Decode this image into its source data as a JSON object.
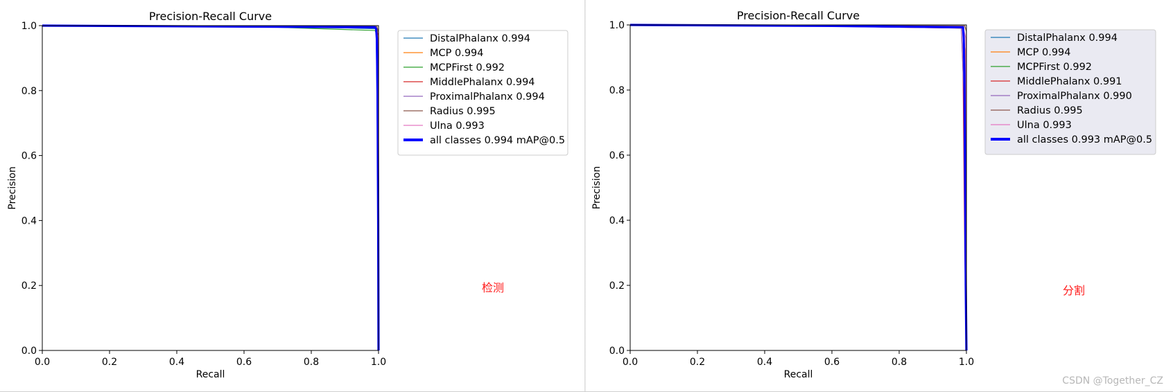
{
  "chart_data": [
    {
      "type": "line",
      "title": "Precision-Recall Curve",
      "xlabel": "Recall",
      "ylabel": "Precision",
      "xlim": [
        0,
        1
      ],
      "ylim": [
        0,
        1
      ],
      "xticks": [
        "0.0",
        "0.2",
        "0.4",
        "0.6",
        "0.8",
        "1.0"
      ],
      "yticks": [
        "0.0",
        "0.2",
        "0.4",
        "0.6",
        "0.8",
        "1.0"
      ],
      "grid": false,
      "legend_position": "top-right outside",
      "legend_background": "#ffffff",
      "annotation": "检测",
      "series": [
        {
          "name": "DistalPhalanx 0.994",
          "color": "#1f77b4",
          "x": [
            0,
            0.5,
            0.9,
            0.993,
            0.997,
            1.0
          ],
          "y": [
            1.0,
            0.997,
            0.993,
            0.99,
            0.6,
            0
          ]
        },
        {
          "name": "MCP 0.994",
          "color": "#ff7f0e",
          "x": [
            0,
            0.5,
            0.99,
            0.997,
            0.999,
            1.0
          ],
          "y": [
            1.0,
            0.998,
            0.995,
            0.99,
            0.5,
            0
          ]
        },
        {
          "name": "MCPFirst 0.992",
          "color": "#2ca02c",
          "x": [
            0,
            0.7,
            0.99,
            0.995,
            0.997,
            1.0
          ],
          "y": [
            1.0,
            0.995,
            0.985,
            0.97,
            0.55,
            0
          ]
        },
        {
          "name": "MiddlePhalanx 0.994",
          "color": "#d62728",
          "x": [
            0,
            0.5,
            0.99,
            1.0,
            1.0
          ],
          "y": [
            1.0,
            0.998,
            0.996,
            0.97,
            0
          ]
        },
        {
          "name": "ProximalPhalanx 0.994",
          "color": "#9467bd",
          "x": [
            0,
            0.5,
            0.99,
            0.998,
            1.0
          ],
          "y": [
            1.0,
            0.998,
            0.996,
            0.95,
            0
          ]
        },
        {
          "name": "Radius 0.995",
          "color": "#8c564b",
          "x": [
            0,
            0.5,
            0.995,
            1.0,
            1.0
          ],
          "y": [
            1.0,
            0.999,
            0.997,
            0.98,
            0
          ]
        },
        {
          "name": "Ulna 0.993",
          "color": "#e377c2",
          "x": [
            0,
            0.5,
            0.99,
            0.998,
            1.0
          ],
          "y": [
            1.0,
            0.998,
            0.995,
            0.96,
            0
          ]
        },
        {
          "name": "all classes 0.994 mAP@0.5",
          "color": "#0000ff",
          "thick": true,
          "x": [
            0,
            0.6,
            0.99,
            0.993,
            0.995,
            0.997,
            0.999,
            1.0
          ],
          "y": [
            1.0,
            0.997,
            0.995,
            0.99,
            0.96,
            0.8,
            0.4,
            0
          ]
        }
      ]
    },
    {
      "type": "line",
      "title": "Precision-Recall Curve",
      "xlabel": "Recall",
      "ylabel": "Precision",
      "xlim": [
        0,
        1
      ],
      "ylim": [
        0,
        1
      ],
      "xticks": [
        "0.0",
        "0.2",
        "0.4",
        "0.6",
        "0.8",
        "1.0"
      ],
      "yticks": [
        "0.0",
        "0.2",
        "0.4",
        "0.6",
        "0.8",
        "1.0"
      ],
      "grid": false,
      "legend_position": "top-right outside",
      "legend_background": "#eaeaf2",
      "annotation": "分割",
      "series": [
        {
          "name": "DistalPhalanx 0.994",
          "color": "#1f77b4",
          "x": [
            0,
            0.5,
            0.99,
            0.997,
            1.0
          ],
          "y": [
            1.0,
            0.998,
            0.995,
            0.9,
            0
          ]
        },
        {
          "name": "MCP 0.994",
          "color": "#ff7f0e",
          "x": [
            0,
            0.5,
            0.99,
            0.997,
            1.0
          ],
          "y": [
            1.0,
            0.998,
            0.995,
            0.9,
            0
          ]
        },
        {
          "name": "MCPFirst 0.992",
          "color": "#2ca02c",
          "x": [
            0,
            0.7,
            0.99,
            0.995,
            1.0
          ],
          "y": [
            1.0,
            0.996,
            0.99,
            0.85,
            0
          ]
        },
        {
          "name": "MiddlePhalanx 0.991",
          "color": "#d62728",
          "x": [
            0,
            0.5,
            0.985,
            0.99,
            0.995,
            1.0
          ],
          "y": [
            1.0,
            0.997,
            0.99,
            0.85,
            0.3,
            0
          ]
        },
        {
          "name": "ProximalPhalanx 0.990",
          "color": "#9467bd",
          "x": [
            0,
            0.5,
            0.985,
            0.992,
            1.0
          ],
          "y": [
            1.0,
            0.997,
            0.99,
            0.8,
            0
          ]
        },
        {
          "name": "Radius 0.995",
          "color": "#8c564b",
          "x": [
            0,
            0.5,
            0.995,
            1.0,
            1.0
          ],
          "y": [
            1.0,
            0.999,
            0.997,
            0.98,
            0
          ]
        },
        {
          "name": "Ulna 0.993",
          "color": "#e377c2",
          "x": [
            0,
            0.5,
            0.99,
            0.998,
            1.0
          ],
          "y": [
            1.0,
            0.998,
            0.995,
            0.96,
            0
          ]
        },
        {
          "name": "all classes 0.993 mAP@0.5",
          "color": "#0000ff",
          "thick": true,
          "x": [
            0,
            0.6,
            0.99,
            0.992,
            0.994,
            0.996,
            0.998,
            1.0
          ],
          "y": [
            1.0,
            0.997,
            0.993,
            0.96,
            0.85,
            0.55,
            0.2,
            0
          ]
        }
      ]
    }
  ],
  "watermark": "CSDN @Together_CZ"
}
